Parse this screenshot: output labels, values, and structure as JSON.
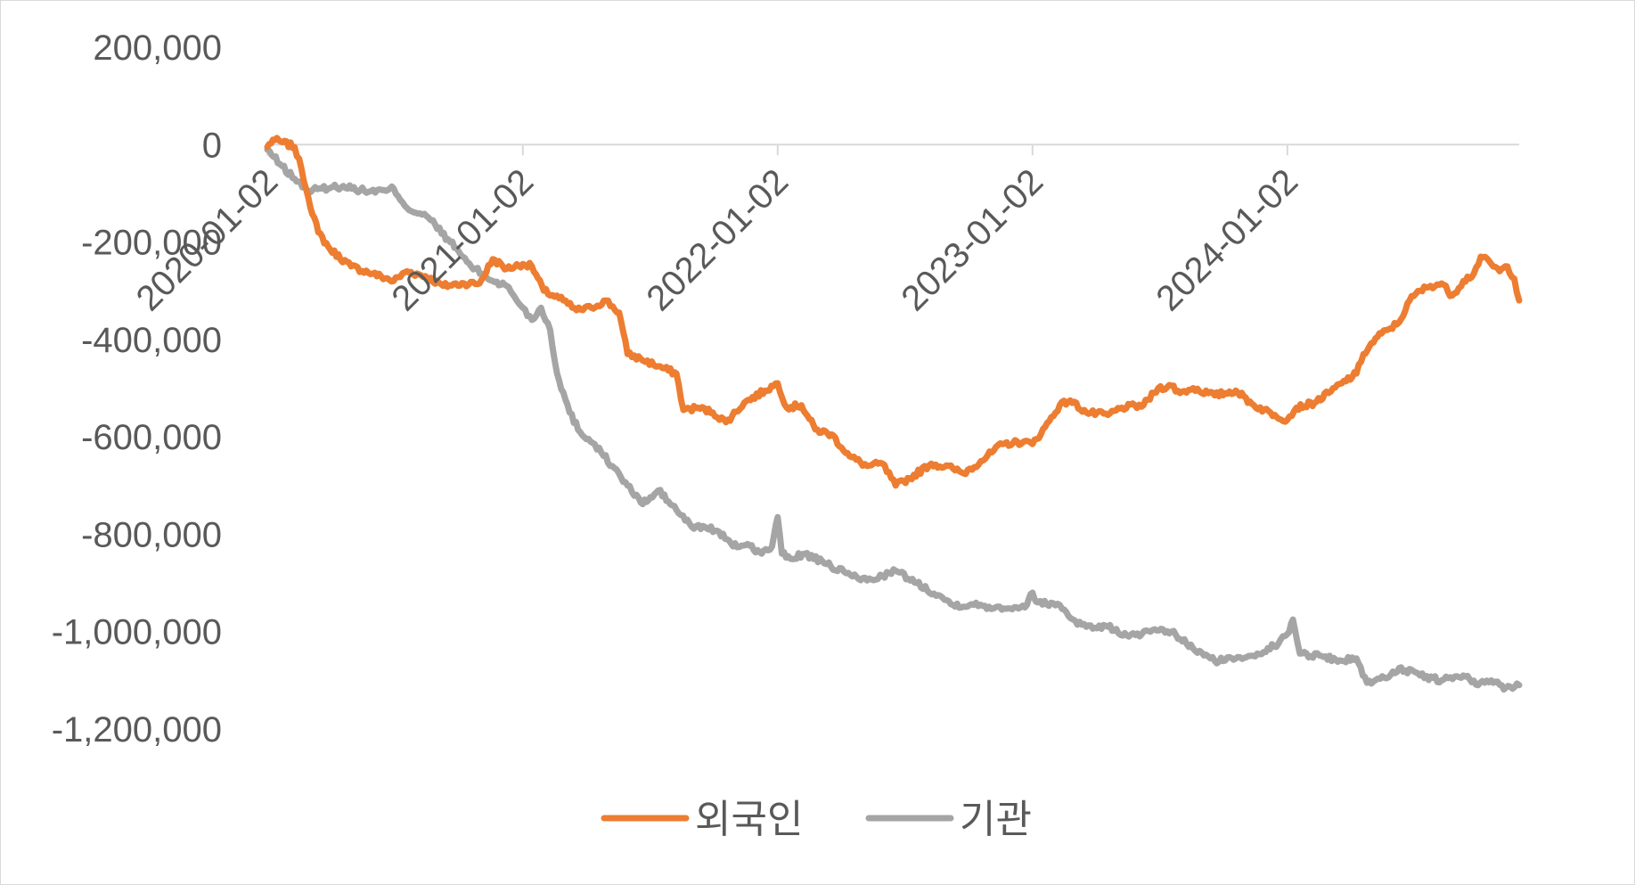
{
  "chart_data": {
    "type": "line",
    "title": "",
    "xlabel": "",
    "ylabel": "",
    "x_start": "2020-01-02",
    "x_end": "2024-11-29",
    "ylim": [
      -1200000,
      200000
    ],
    "y_ticks": [
      200000,
      0,
      -200000,
      -400000,
      -600000,
      -800000,
      -1000000,
      -1200000
    ],
    "y_tick_labels": [
      "200,000",
      "0",
      "-200,000",
      "-400,000",
      "-600,000",
      "-800,000",
      "-1,000,000",
      "-1,200,000"
    ],
    "x_ticks": [
      "2020-01-02",
      "2021-01-02",
      "2022-01-02",
      "2023-01-02",
      "2024-01-02"
    ],
    "grid": "horizontal zero line only",
    "legend_position": "bottom",
    "series": [
      {
        "name": "외국인",
        "color": "#ED7D31",
        "points": [
          [
            "2020-01-02",
            -5000
          ],
          [
            "2020-01-10",
            10000
          ],
          [
            "2020-01-24",
            5000
          ],
          [
            "2020-02-10",
            -5000
          ],
          [
            "2020-02-20",
            -50000
          ],
          [
            "2020-03-01",
            -110000
          ],
          [
            "2020-03-15",
            -180000
          ],
          [
            "2020-04-01",
            -215000
          ],
          [
            "2020-05-01",
            -250000
          ],
          [
            "2020-06-01",
            -265000
          ],
          [
            "2020-07-01",
            -280000
          ],
          [
            "2020-07-20",
            -260000
          ],
          [
            "2020-08-15",
            -270000
          ],
          [
            "2020-09-10",
            -290000
          ],
          [
            "2020-10-10",
            -285000
          ],
          [
            "2020-11-01",
            -285000
          ],
          [
            "2020-11-20",
            -235000
          ],
          [
            "2020-12-10",
            -255000
          ],
          [
            "2021-01-02",
            -245000
          ],
          [
            "2021-01-15",
            -250000
          ],
          [
            "2021-02-01",
            -300000
          ],
          [
            "2021-03-01",
            -320000
          ],
          [
            "2021-03-20",
            -340000
          ],
          [
            "2021-04-10",
            -335000
          ],
          [
            "2021-05-01",
            -320000
          ],
          [
            "2021-05-20",
            -345000
          ],
          [
            "2021-06-01",
            -430000
          ],
          [
            "2021-06-20",
            -440000
          ],
          [
            "2021-07-15",
            -455000
          ],
          [
            "2021-08-10",
            -470000
          ],
          [
            "2021-08-20",
            -545000
          ],
          [
            "2021-09-10",
            -540000
          ],
          [
            "2021-10-01",
            -550000
          ],
          [
            "2021-10-20",
            -570000
          ],
          [
            "2021-11-15",
            -530000
          ],
          [
            "2021-12-15",
            -505000
          ],
          [
            "2022-01-02",
            -490000
          ],
          [
            "2022-01-15",
            -540000
          ],
          [
            "2022-02-05",
            -535000
          ],
          [
            "2022-02-25",
            -585000
          ],
          [
            "2022-03-20",
            -595000
          ],
          [
            "2022-04-15",
            -640000
          ],
          [
            "2022-05-10",
            -660000
          ],
          [
            "2022-06-01",
            -655000
          ],
          [
            "2022-06-20",
            -700000
          ],
          [
            "2022-07-10",
            -685000
          ],
          [
            "2022-08-10",
            -655000
          ],
          [
            "2022-09-10",
            -665000
          ],
          [
            "2022-09-25",
            -675000
          ],
          [
            "2022-10-20",
            -650000
          ],
          [
            "2022-11-20",
            -615000
          ],
          [
            "2022-12-20",
            -610000
          ],
          [
            "2023-01-02",
            -615000
          ],
          [
            "2023-01-20",
            -580000
          ],
          [
            "2023-02-10",
            -535000
          ],
          [
            "2023-02-25",
            -525000
          ],
          [
            "2023-03-20",
            -550000
          ],
          [
            "2023-04-20",
            -555000
          ],
          [
            "2023-05-10",
            -540000
          ],
          [
            "2023-06-10",
            -535000
          ],
          [
            "2023-07-01",
            -500000
          ],
          [
            "2023-07-20",
            -495000
          ],
          [
            "2023-08-01",
            -510000
          ],
          [
            "2023-08-20",
            -500000
          ],
          [
            "2023-09-20",
            -515000
          ],
          [
            "2023-10-20",
            -505000
          ],
          [
            "2023-11-15",
            -535000
          ],
          [
            "2023-12-15",
            -555000
          ],
          [
            "2024-01-02",
            -565000
          ],
          [
            "2024-01-15",
            -540000
          ],
          [
            "2024-02-10",
            -530000
          ],
          [
            "2024-03-01",
            -510000
          ],
          [
            "2024-03-20",
            -490000
          ],
          [
            "2024-04-10",
            -470000
          ],
          [
            "2024-04-20",
            -430000
          ],
          [
            "2024-05-10",
            -395000
          ],
          [
            "2024-05-25",
            -380000
          ],
          [
            "2024-06-10",
            -365000
          ],
          [
            "2024-06-25",
            -320000
          ],
          [
            "2024-07-10",
            -300000
          ],
          [
            "2024-07-25",
            -290000
          ],
          [
            "2024-08-10",
            -285000
          ],
          [
            "2024-08-25",
            -310000
          ],
          [
            "2024-09-10",
            -280000
          ],
          [
            "2024-09-25",
            -265000
          ],
          [
            "2024-10-05",
            -230000
          ],
          [
            "2024-10-20",
            -245000
          ],
          [
            "2024-11-01",
            -260000
          ],
          [
            "2024-11-12",
            -250000
          ],
          [
            "2024-11-22",
            -275000
          ],
          [
            "2024-11-29",
            -320000
          ]
        ]
      },
      {
        "name": "기관",
        "color": "#A5A5A5",
        "points": [
          [
            "2020-01-02",
            -10000
          ],
          [
            "2020-01-20",
            -40000
          ],
          [
            "2020-02-10",
            -70000
          ],
          [
            "2020-03-01",
            -95000
          ],
          [
            "2020-03-20",
            -90000
          ],
          [
            "2020-04-20",
            -85000
          ],
          [
            "2020-05-20",
            -95000
          ],
          [
            "2020-06-20",
            -95000
          ],
          [
            "2020-07-01",
            -90000
          ],
          [
            "2020-07-20",
            -130000
          ],
          [
            "2020-08-20",
            -150000
          ],
          [
            "2020-09-20",
            -200000
          ],
          [
            "2020-10-20",
            -250000
          ],
          [
            "2020-11-20",
            -280000
          ],
          [
            "2020-12-10",
            -290000
          ],
          [
            "2021-01-02",
            -335000
          ],
          [
            "2021-01-15",
            -360000
          ],
          [
            "2021-01-28",
            -335000
          ],
          [
            "2021-02-10",
            -380000
          ],
          [
            "2021-02-20",
            -470000
          ],
          [
            "2021-03-10",
            -550000
          ],
          [
            "2021-03-25",
            -590000
          ],
          [
            "2021-04-15",
            -615000
          ],
          [
            "2021-05-10",
            -660000
          ],
          [
            "2021-06-01",
            -700000
          ],
          [
            "2021-06-20",
            -735000
          ],
          [
            "2021-07-01",
            -730000
          ],
          [
            "2021-07-15",
            -710000
          ],
          [
            "2021-08-10",
            -750000
          ],
          [
            "2021-09-01",
            -785000
          ],
          [
            "2021-09-20",
            -785000
          ],
          [
            "2021-10-10",
            -795000
          ],
          [
            "2021-10-30",
            -825000
          ],
          [
            "2021-11-20",
            -820000
          ],
          [
            "2021-12-10",
            -840000
          ],
          [
            "2021-12-25",
            -825000
          ],
          [
            "2022-01-02",
            -765000
          ],
          [
            "2022-01-08",
            -840000
          ],
          [
            "2022-01-20",
            -850000
          ],
          [
            "2022-02-10",
            -840000
          ],
          [
            "2022-03-10",
            -860000
          ],
          [
            "2022-04-10",
            -880000
          ],
          [
            "2022-05-10",
            -895000
          ],
          [
            "2022-06-01",
            -885000
          ],
          [
            "2022-06-20",
            -875000
          ],
          [
            "2022-07-20",
            -900000
          ],
          [
            "2022-08-20",
            -925000
          ],
          [
            "2022-09-10",
            -945000
          ],
          [
            "2022-10-10",
            -945000
          ],
          [
            "2022-11-10",
            -950000
          ],
          [
            "2022-12-10",
            -950000
          ],
          [
            "2022-12-25",
            -945000
          ],
          [
            "2023-01-02",
            -920000
          ],
          [
            "2023-01-10",
            -940000
          ],
          [
            "2023-02-10",
            -945000
          ],
          [
            "2023-03-01",
            -975000
          ],
          [
            "2023-03-20",
            -990000
          ],
          [
            "2023-04-20",
            -990000
          ],
          [
            "2023-05-20",
            -1010000
          ],
          [
            "2023-06-20",
            -1000000
          ],
          [
            "2023-07-20",
            -1000000
          ],
          [
            "2023-08-20",
            -1035000
          ],
          [
            "2023-09-20",
            -1060000
          ],
          [
            "2023-10-20",
            -1055000
          ],
          [
            "2023-11-20",
            -1045000
          ],
          [
            "2023-12-20",
            -1025000
          ],
          [
            "2024-01-02",
            -1005000
          ],
          [
            "2024-01-10",
            -975000
          ],
          [
            "2024-01-20",
            -1045000
          ],
          [
            "2024-02-20",
            -1050000
          ],
          [
            "2024-03-20",
            -1060000
          ],
          [
            "2024-04-10",
            -1055000
          ],
          [
            "2024-04-25",
            -1105000
          ],
          [
            "2024-05-20",
            -1095000
          ],
          [
            "2024-06-10",
            -1075000
          ],
          [
            "2024-07-10",
            -1090000
          ],
          [
            "2024-08-10",
            -1100000
          ],
          [
            "2024-09-10",
            -1090000
          ],
          [
            "2024-10-01",
            -1110000
          ],
          [
            "2024-10-20",
            -1100000
          ],
          [
            "2024-11-10",
            -1115000
          ],
          [
            "2024-11-29",
            -1110000
          ]
        ]
      }
    ]
  }
}
